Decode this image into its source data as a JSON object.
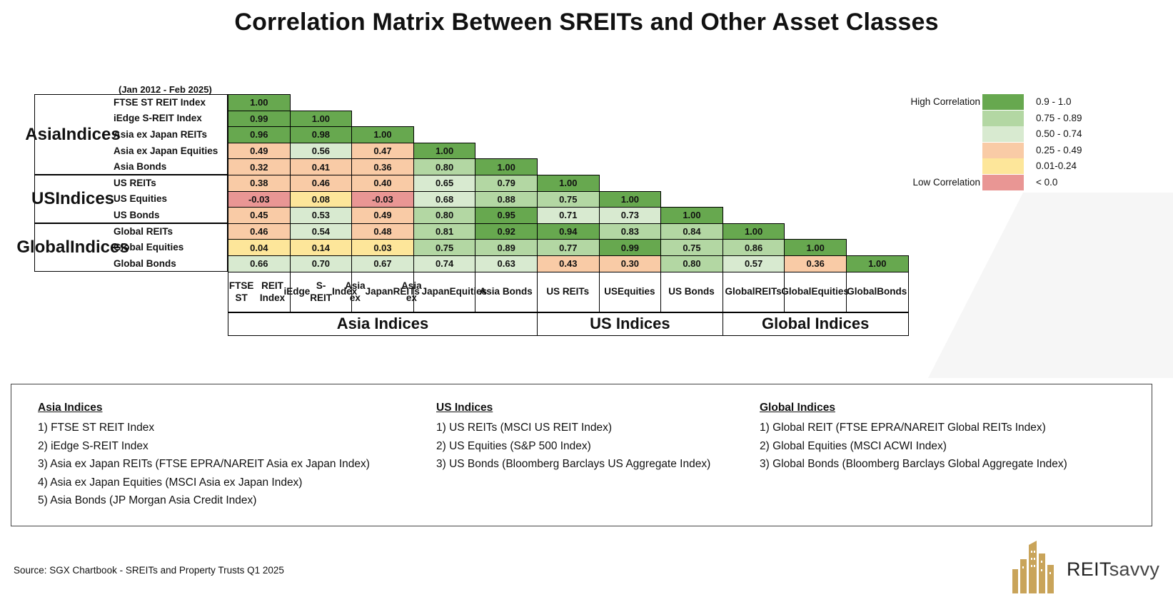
{
  "title": "Correlation Matrix Between SREITs and Other Asset Classes",
  "period": "(Jan 2012 - Feb 2025)",
  "chart_data": {
    "type": "heatmap",
    "title": "Correlation Matrix Between SREITs and Other Asset Classes",
    "rows": [
      "FTSE ST REIT Index",
      "iEdge S-REIT Index",
      "Asia ex Japan REITs",
      "Asia ex Japan Equities",
      "Asia Bonds",
      "US REITs",
      "US Equities",
      "US Bonds",
      "Global REITs",
      "Global Equities",
      "Global Bonds"
    ],
    "columns": [
      "FTSE ST REIT Index",
      "iEdge S-REIT Index",
      "Asia ex Japan REITs",
      "Asia ex Japan Equities",
      "Asia Bonds",
      "US REITs",
      "US Equities",
      "US Bonds",
      "Global REITs",
      "Global Equities",
      "Global Bonds"
    ],
    "row_groups": [
      {
        "label": "Asia Indices",
        "count": 5
      },
      {
        "label": "US Indices",
        "count": 3
      },
      {
        "label": "Global Indices",
        "count": 3
      }
    ],
    "column_groups": [
      {
        "label": "Asia Indices",
        "count": 5
      },
      {
        "label": "US Indices",
        "count": 3
      },
      {
        "label": "Global Indices",
        "count": 3
      }
    ],
    "values": [
      [
        "1.00"
      ],
      [
        "0.99",
        "1.00"
      ],
      [
        "0.96",
        "0.98",
        "1.00"
      ],
      [
        "0.49",
        "0.56",
        "0.47",
        "1.00"
      ],
      [
        "0.32",
        "0.41",
        "0.36",
        "0.80",
        "1.00"
      ],
      [
        "0.38",
        "0.46",
        "0.40",
        "0.65",
        "0.79",
        "1.00"
      ],
      [
        "-0.03",
        "0.08",
        "-0.03",
        "0.68",
        "0.88",
        "0.75",
        "1.00"
      ],
      [
        "0.45",
        "0.53",
        "0.49",
        "0.80",
        "0.95",
        "0.71",
        "0.73",
        "1.00"
      ],
      [
        "0.46",
        "0.54",
        "0.48",
        "0.81",
        "0.92",
        "0.94",
        "0.83",
        "0.84",
        "1.00"
      ],
      [
        "0.04",
        "0.14",
        "0.03",
        "0.75",
        "0.89",
        "0.77",
        "0.99",
        "0.75",
        "0.86",
        "1.00"
      ],
      [
        "0.66",
        "0.70",
        "0.67",
        "0.74",
        "0.63",
        "0.43",
        "0.30",
        "0.80",
        "0.57",
        "0.36",
        "1.00"
      ]
    ],
    "column_headers": [
      [
        "FTSE ST",
        "REIT Index"
      ],
      [
        "iEdge",
        "S-REIT",
        "Index"
      ],
      [
        "Asia ex",
        "Japan",
        "REITs"
      ],
      [
        "Asia ex",
        "Japan",
        "Equities"
      ],
      [
        "Asia Bonds"
      ],
      [
        "US REITs"
      ],
      [
        "US",
        "Equities"
      ],
      [
        "US Bonds"
      ],
      [
        "Global",
        "REITs"
      ],
      [
        "Global",
        "Equities"
      ],
      [
        "Global",
        "Bonds"
      ]
    ],
    "legend": {
      "high_label": "High Correlation",
      "low_label": "Low Correlation",
      "bins": [
        {
          "range": "0.9 - 1.0",
          "min": 0.9,
          "color": "#67a84f"
        },
        {
          "range": "0.75 - 0.89",
          "min": 0.75,
          "color": "#b3d7a3"
        },
        {
          "range": "0.50 - 0.74",
          "min": 0.5,
          "color": "#d8ead0"
        },
        {
          "range": "0.25 - 0.49",
          "min": 0.25,
          "color": "#f9cba6"
        },
        {
          "range": "0.01-0.24",
          "min": 0.0,
          "color": "#fde69a"
        },
        {
          "range": "< 0.0",
          "min": -1.0,
          "color": "#e99694"
        }
      ]
    }
  },
  "notes": {
    "columns": [
      {
        "heading": "Asia Indices",
        "items": [
          "1) FTSE ST REIT Index",
          "2) iEdge S-REIT Index",
          "3) Asia ex Japan REITs (FTSE EPRA/NAREIT Asia ex Japan Index)",
          "4) Asia ex Japan Equities (MSCI Asia ex Japan Index)",
          "5) Asia Bonds (JP Morgan Asia Credit Index)"
        ]
      },
      {
        "heading": "US Indices",
        "items": [
          "1) US REITs (MSCI US REIT Index)",
          "2) US Equities (S&P 500 Index)",
          "3) US Bonds (Bloomberg Barclays US Aggregate Index)"
        ]
      },
      {
        "heading": "Global Indices",
        "items": [
          "1) Global REIT (FTSE EPRA/NAREIT Global REITs Index)",
          "2) Global Equities (MSCI ACWI Index)",
          "3) Global Bonds (Bloomberg Barclays Global Aggregate Index)"
        ]
      }
    ]
  },
  "source": "Source: SGX Chartbook - SREITs and Property Trusts Q1 2025",
  "logo": {
    "text_bold": "REIT",
    "text_light": "savvy"
  }
}
